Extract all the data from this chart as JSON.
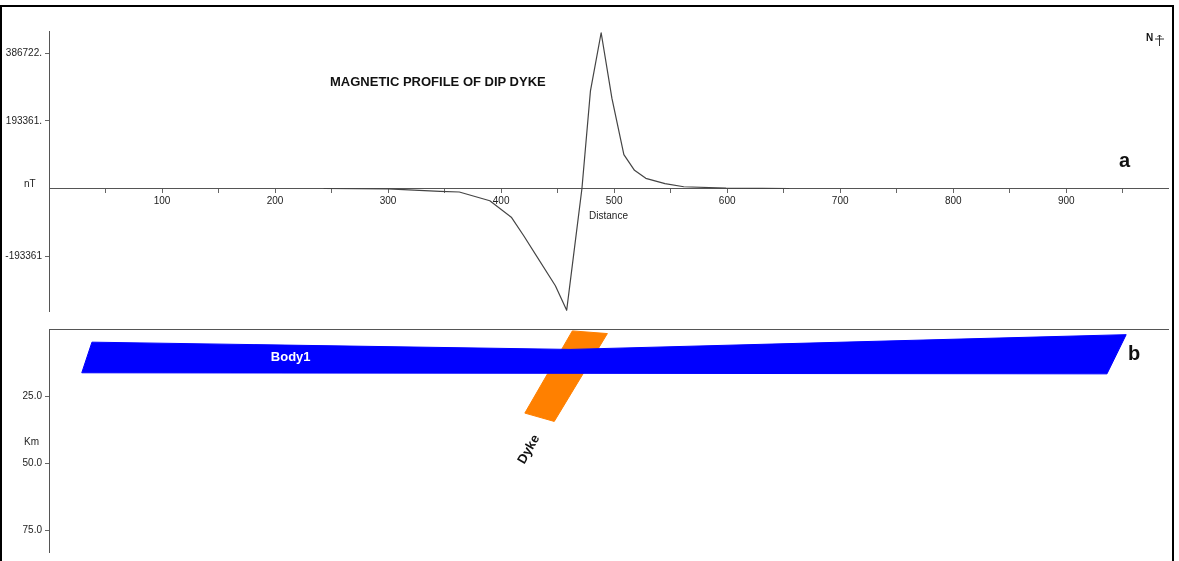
{
  "chart_data": [
    {
      "type": "line",
      "title": "MAGNETIC PROFILE OF DIP DYKE",
      "xlabel": "Distance",
      "ylabel": "nT",
      "annotations": [
        "N",
        "a"
      ],
      "x": [
        243,
        300,
        346,
        363,
        390,
        409,
        420,
        448,
        458,
        471.5,
        479,
        488.5,
        498,
        508.6,
        518,
        528,
        545,
        561.6,
        599,
        655
      ],
      "series": [
        {
          "color": "#444444",
          "values": [
            0,
            -1000,
            -8000,
            -10000,
            -35000,
            -82000,
            -135000,
            -278000,
            -348000,
            0,
            278000,
            445000,
            258000,
            97000,
            52000,
            29000,
            14000,
            5000,
            1000,
            0
          ]
        }
      ],
      "xlim": [
        0,
        990
      ],
      "ylim": [
        -350000,
        450000
      ],
      "xticks": [
        {
          "value": 50,
          "label": null
        },
        100,
        {
          "value": 150,
          "label": null
        },
        200,
        {
          "value": 250,
          "label": null
        },
        300,
        {
          "value": 350,
          "label": null
        },
        400,
        {
          "value": 450,
          "label": null
        },
        500,
        {
          "value": 550,
          "label": null
        },
        600,
        {
          "value": 650,
          "label": null
        },
        700,
        {
          "value": 750,
          "label": null
        },
        800,
        {
          "value": 850,
          "label": null
        },
        900,
        {
          "value": 950,
          "label": null
        }
      ],
      "yticks": [
        {
          "value": -193361,
          "label": "-193361"
        },
        {
          "value": 193361,
          "label": "193361."
        },
        {
          "value": 386722,
          "label": "386722."
        }
      ],
      "grid": false,
      "legend": false,
      "marker": "none",
      "line_style": "solid"
    },
    {
      "type": "area",
      "ylabel": "Km",
      "annotations": [
        "b"
      ],
      "series": [
        {
          "name": "Body1",
          "color": "#0000ff",
          "x": [
            38,
            461,
            953,
            936,
            29,
            38
          ],
          "values": [
            4.9,
            7.6,
            2.1,
            16.7,
            16.3,
            4.9
          ]
        },
        {
          "name": "Dyke",
          "color": "#ff8000",
          "x": [
            463,
            494,
            447,
            421,
            463
          ],
          "values": [
            0.7,
            1.7,
            34.4,
            31.3,
            0.7
          ]
        }
      ],
      "xlim": [
        0,
        990
      ],
      "ylim": [
        83,
        0
      ],
      "yticks": [
        {
          "value": 25,
          "label": "25.0"
        },
        {
          "value": 50,
          "label": "50.0"
        },
        {
          "value": 75,
          "label": "75.0"
        }
      ],
      "tick_labels": "y",
      "grid": false,
      "legend": false,
      "marker": "none"
    }
  ]
}
